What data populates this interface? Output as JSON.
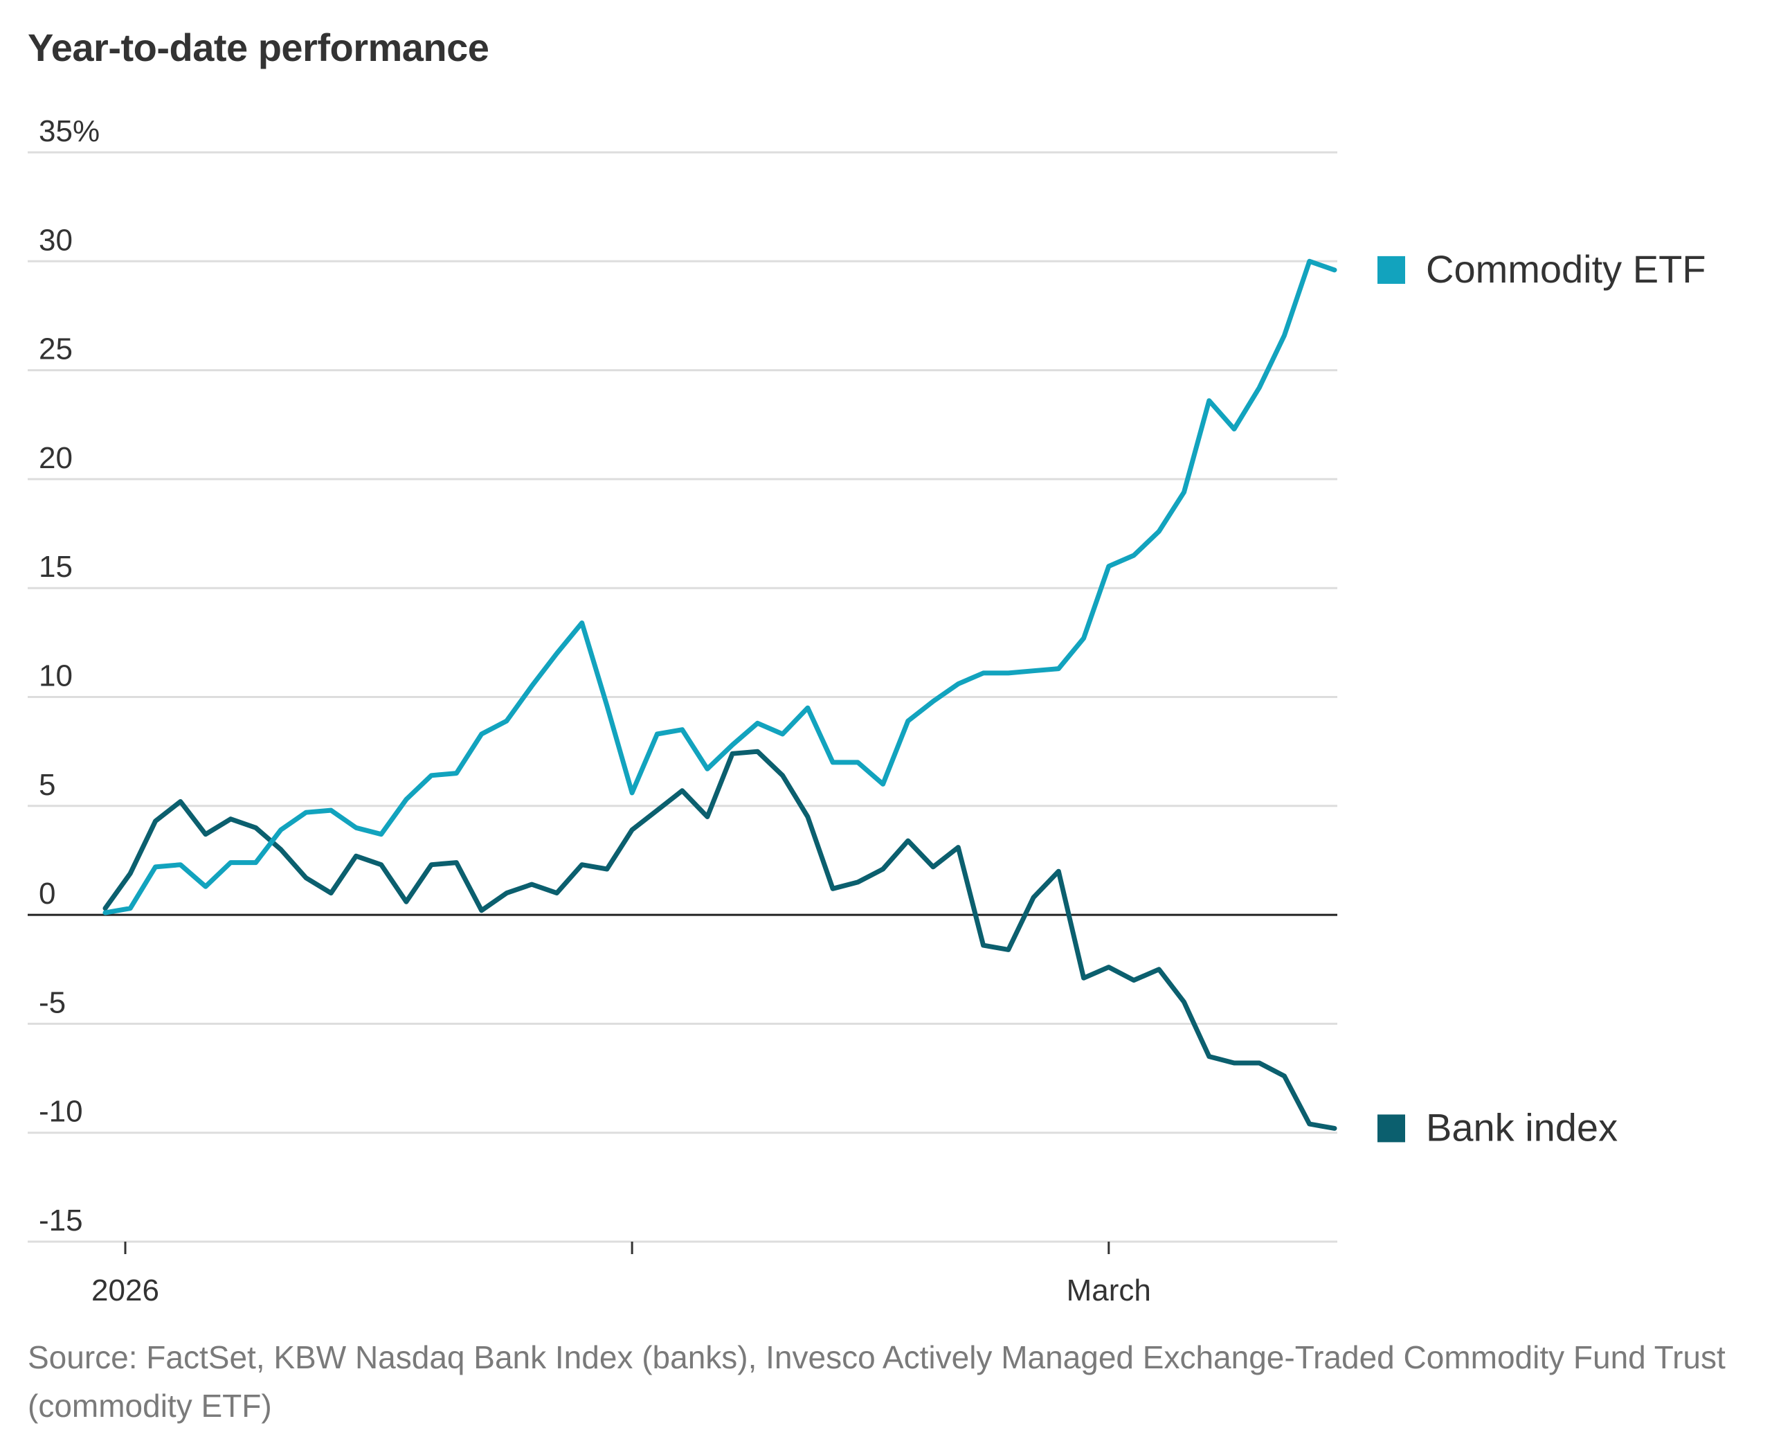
{
  "chart_data": {
    "type": "line",
    "title": "Year-to-date performance",
    "xlabel": "",
    "ylabel": "",
    "ylim": [
      -15,
      35
    ],
    "y_ticks": [
      35,
      30,
      25,
      20,
      15,
      10,
      5,
      0,
      -5,
      -10,
      -15
    ],
    "y_tick_labels": [
      "35%",
      "30",
      "25",
      "20",
      "15",
      "10",
      "5",
      "0",
      "-5",
      "-10",
      "-15"
    ],
    "x_tick_labels": [
      "2026",
      "",
      "March"
    ],
    "x_tick_index": [
      0.8,
      21,
      40
    ],
    "grid": true,
    "legend_position": "right, at line ends",
    "series": [
      {
        "name": "Commodity ETF",
        "color": "#12a3be",
        "values": [
          0.1,
          0.3,
          2.2,
          2.3,
          1.3,
          2.4,
          2.4,
          3.9,
          4.7,
          4.8,
          4.0,
          3.7,
          5.3,
          6.4,
          6.5,
          8.3,
          8.9,
          10.5,
          12.0,
          13.4,
          9.6,
          5.6,
          8.3,
          8.5,
          6.7,
          7.8,
          8.8,
          8.3,
          9.5,
          7.0,
          7.0,
          6.0,
          8.9,
          9.8,
          10.6,
          11.1,
          11.1,
          11.2,
          11.3,
          12.7,
          16.0,
          16.5,
          17.6,
          19.4,
          23.6,
          22.3,
          24.2,
          26.6,
          30.0,
          29.6
        ],
        "end_label": "Commodity ETF"
      },
      {
        "name": "Bank index",
        "color": "#0b5f6e",
        "values": [
          0.3,
          1.9,
          4.3,
          5.2,
          3.7,
          4.4,
          4.0,
          3.0,
          1.7,
          1.0,
          2.7,
          2.3,
          0.6,
          2.3,
          2.4,
          0.2,
          1.0,
          1.4,
          1.0,
          2.3,
          2.1,
          3.9,
          4.8,
          5.7,
          4.5,
          7.4,
          7.5,
          6.4,
          4.5,
          1.2,
          1.5,
          2.1,
          3.4,
          2.2,
          3.1,
          -1.4,
          -1.6,
          0.8,
          2.0,
          -2.9,
          -2.4,
          -3.0,
          -2.5,
          -4.0,
          -6.5,
          -6.8,
          -6.8,
          -7.4,
          -9.6,
          -9.8
        ],
        "end_label": "Bank index"
      }
    ]
  },
  "legend": {
    "commodity": {
      "label": "Commodity ETF",
      "color": "#12a3be"
    },
    "bank": {
      "label": "Bank index",
      "color": "#0b5f6e"
    }
  },
  "source": "Source: FactSet, KBW Nasdaq Bank Index (banks), Invesco Actively Managed Exchange-Traded Commodity Fund Trust (commodity ETF)"
}
